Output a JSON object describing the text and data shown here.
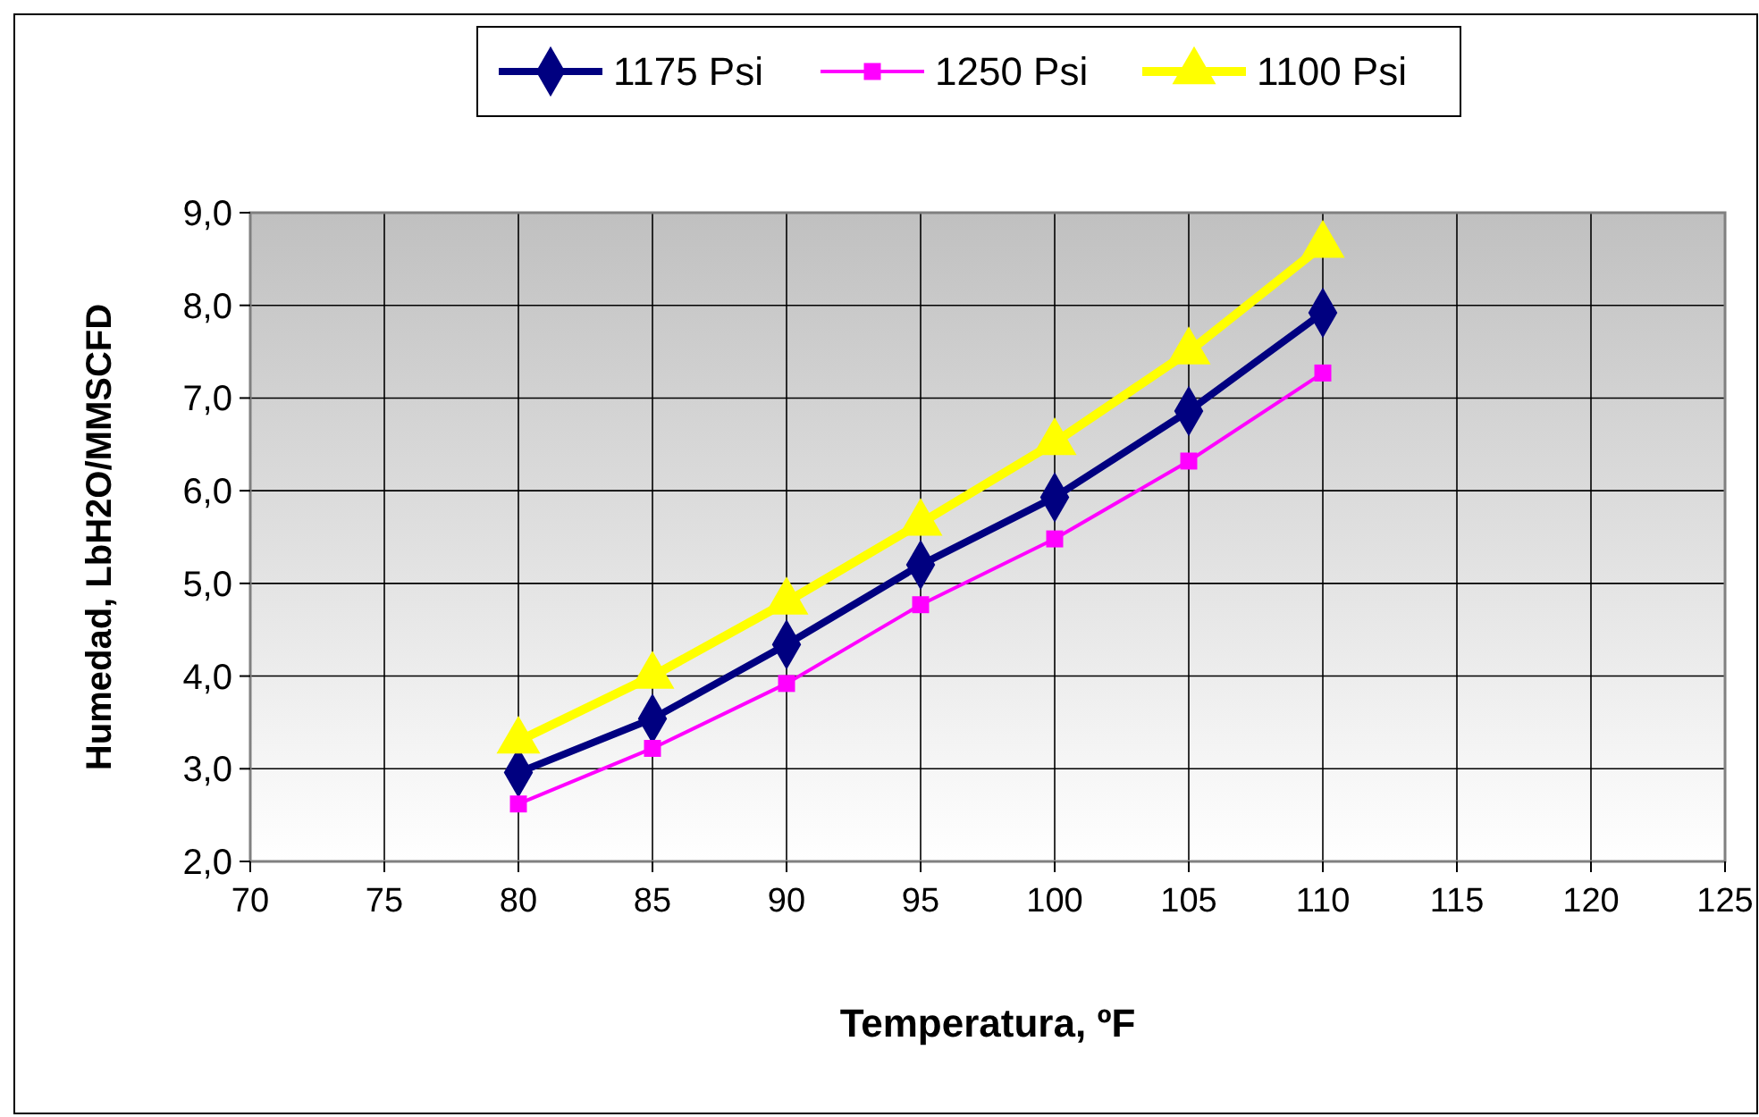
{
  "chart_data": {
    "type": "line",
    "xlabel": "Temperatura, ºF",
    "ylabel": "Humedad,  LbH2O/MMSCFD",
    "x": [
      80,
      85,
      90,
      95,
      100,
      105,
      110
    ],
    "series": [
      {
        "name": "1175 Psi",
        "color": "#000080",
        "marker": "diamond",
        "values": [
          2.96,
          3.54,
          4.34,
          5.2,
          5.93,
          6.86,
          7.92
        ]
      },
      {
        "name": "1250 Psi",
        "color": "#ff00ff",
        "marker": "square",
        "values": [
          2.62,
          3.22,
          3.92,
          4.77,
          5.48,
          6.32,
          7.27
        ]
      },
      {
        "name": "1100 Psi",
        "color": "#ffff00",
        "marker": "triangle",
        "values": [
          3.3,
          4.0,
          4.8,
          5.65,
          6.52,
          7.5,
          8.65
        ]
      }
    ],
    "xlim": [
      70,
      125
    ],
    "xticks": [
      70,
      75,
      80,
      85,
      90,
      95,
      100,
      105,
      110,
      115,
      120,
      125
    ],
    "ylim": [
      2,
      9
    ],
    "yticks": [
      {
        "value": 2,
        "label": "2,0"
      },
      {
        "value": 3,
        "label": "3,0"
      },
      {
        "value": 4,
        "label": "4,0"
      },
      {
        "value": 5,
        "label": "5,0"
      },
      {
        "value": 6,
        "label": "6,0"
      },
      {
        "value": 7,
        "label": "7,0"
      },
      {
        "value": 8,
        "label": "8,0"
      },
      {
        "value": 9,
        "label": "9,0"
      }
    ],
    "grid": true,
    "legend": "top"
  }
}
